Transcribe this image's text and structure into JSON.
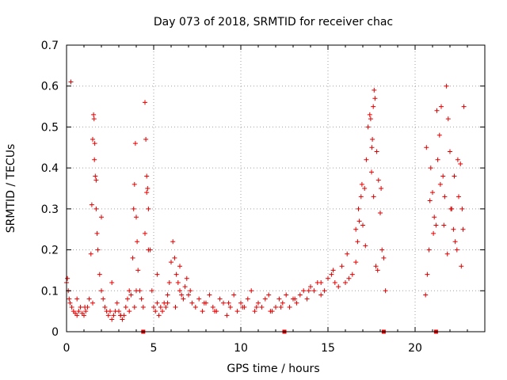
{
  "chart_data": {
    "type": "scatter",
    "title": "Day 073 of 2018, SRMTID for receiver chac",
    "xlabel": "GPS time / hours",
    "ylabel": "SRMTID / TECUs",
    "xlim": [
      0,
      24
    ],
    "ylim": [
      0,
      0.7
    ],
    "xticks": [
      "0",
      "5",
      "10",
      "15",
      "20"
    ],
    "xtick_values": [
      0,
      5,
      10,
      15,
      20
    ],
    "yticks": [
      "0",
      "0.1",
      "0.2",
      "0.3",
      "0.4",
      "0.5",
      "0.6",
      "0.7"
    ],
    "ytick_values": [
      0,
      0.1,
      0.2,
      0.3,
      0.4,
      0.5,
      0.6,
      0.7
    ],
    "grid": true,
    "marker": "+",
    "color": "#e00000",
    "gap_markers_x": [
      4.4,
      12.5,
      18.2,
      21.2
    ],
    "series": [
      {
        "name": "SRMTID",
        "x": [
          0.0,
          0.05,
          0.1,
          0.15,
          0.2,
          0.3,
          0.4,
          0.5,
          0.6,
          0.7,
          0.8,
          0.9,
          1.0,
          1.1,
          1.2,
          1.3,
          1.4,
          1.45,
          1.5,
          1.55,
          1.6,
          1.65,
          1.7,
          1.75,
          1.8,
          1.9,
          2.0,
          2.1,
          2.2,
          2.3,
          2.4,
          2.5,
          2.6,
          2.7,
          2.8,
          2.9,
          3.0,
          3.1,
          3.2,
          3.3,
          3.4,
          3.5,
          3.6,
          3.7,
          3.8,
          3.85,
          3.9,
          3.95,
          4.0,
          4.05,
          4.1,
          4.2,
          4.3,
          4.4,
          4.5,
          4.55,
          4.6,
          4.65,
          4.7,
          4.8,
          4.9,
          5.0,
          5.1,
          5.2,
          5.3,
          5.4,
          5.5,
          5.6,
          5.7,
          5.8,
          5.9,
          6.0,
          6.1,
          6.2,
          6.3,
          6.4,
          6.5,
          6.6,
          6.7,
          6.8,
          6.9,
          7.0,
          7.2,
          7.4,
          7.6,
          7.8,
          8.0,
          8.2,
          8.4,
          8.6,
          8.8,
          9.0,
          9.2,
          9.4,
          9.6,
          9.8,
          10.0,
          10.2,
          10.4,
          10.6,
          10.8,
          11.0,
          11.2,
          11.4,
          11.6,
          11.8,
          12.0,
          12.2,
          12.4,
          12.6,
          12.8,
          13.0,
          13.2,
          13.4,
          13.6,
          13.8,
          14.0,
          14.2,
          14.4,
          14.6,
          14.8,
          15.0,
          15.2,
          15.4,
          15.6,
          15.8,
          16.0,
          16.2,
          16.4,
          16.6,
          16.7,
          16.8,
          16.9,
          17.0,
          17.1,
          17.2,
          17.3,
          17.4,
          17.5,
          17.55,
          17.6,
          17.65,
          17.7,
          17.8,
          17.9,
          18.0,
          18.1,
          18.2,
          18.3,
          20.6,
          20.7,
          20.8,
          20.9,
          21.0,
          21.1,
          21.2,
          21.3,
          21.4,
          21.5,
          21.6,
          21.7,
          21.8,
          21.9,
          22.0,
          22.1,
          22.2,
          22.3,
          22.4,
          22.5,
          22.6,
          22.7,
          22.8,
          0.25,
          0.6,
          1.05,
          1.5,
          1.58,
          1.62,
          1.7,
          2.0,
          2.6,
          3.1,
          3.6,
          3.9,
          4.0,
          4.5,
          4.6,
          4.7,
          5.2,
          5.8,
          6.25,
          6.5,
          7.1,
          7.9,
          8.5,
          9.3,
          10.1,
          10.9,
          11.7,
          12.3,
          13.1,
          13.9,
          14.6,
          15.3,
          16.1,
          16.6,
          16.75,
          16.95,
          17.15,
          17.45,
          17.52,
          17.62,
          17.75,
          17.85,
          18.05,
          20.65,
          20.85,
          21.05,
          21.25,
          21.45,
          21.65,
          21.85,
          22.05,
          22.25,
          22.45,
          22.65,
          22.75
        ],
        "y": [
          0.12,
          0.13,
          0.1,
          0.08,
          0.07,
          0.06,
          0.05,
          0.045,
          0.04,
          0.05,
          0.06,
          0.045,
          0.04,
          0.05,
          0.06,
          0.08,
          0.19,
          0.31,
          0.47,
          0.53,
          0.42,
          0.38,
          0.3,
          0.24,
          0.2,
          0.14,
          0.1,
          0.08,
          0.06,
          0.05,
          0.04,
          0.05,
          0.03,
          0.04,
          0.05,
          0.07,
          0.05,
          0.04,
          0.03,
          0.04,
          0.06,
          0.08,
          0.1,
          0.09,
          0.18,
          0.3,
          0.36,
          0.46,
          0.28,
          0.22,
          0.15,
          0.1,
          0.08,
          0.06,
          0.56,
          0.47,
          0.38,
          0.35,
          0.3,
          0.2,
          0.1,
          0.06,
          0.05,
          0.07,
          0.04,
          0.06,
          0.05,
          0.07,
          0.06,
          0.09,
          0.12,
          0.17,
          0.22,
          0.18,
          0.14,
          0.12,
          0.1,
          0.09,
          0.08,
          0.11,
          0.13,
          0.09,
          0.07,
          0.06,
          0.08,
          0.05,
          0.07,
          0.09,
          0.06,
          0.05,
          0.08,
          0.07,
          0.04,
          0.06,
          0.09,
          0.05,
          0.07,
          0.06,
          0.08,
          0.1,
          0.05,
          0.07,
          0.06,
          0.08,
          0.09,
          0.05,
          0.06,
          0.08,
          0.07,
          0.09,
          0.06,
          0.08,
          0.07,
          0.09,
          0.1,
          0.08,
          0.11,
          0.1,
          0.12,
          0.09,
          0.1,
          0.13,
          0.14,
          0.12,
          0.11,
          0.16,
          0.12,
          0.13,
          0.14,
          0.17,
          0.22,
          0.27,
          0.33,
          0.26,
          0.35,
          0.42,
          0.5,
          0.53,
          0.39,
          0.47,
          0.55,
          0.59,
          0.57,
          0.44,
          0.37,
          0.29,
          0.2,
          0.18,
          0.1,
          0.09,
          0.14,
          0.2,
          0.4,
          0.34,
          0.28,
          0.26,
          0.42,
          0.48,
          0.55,
          0.38,
          0.33,
          0.6,
          0.52,
          0.44,
          0.3,
          0.25,
          0.22,
          0.2,
          0.33,
          0.41,
          0.3,
          0.55,
          0.61,
          0.08,
          0.06,
          0.07,
          0.52,
          0.46,
          0.37,
          0.28,
          0.12,
          0.04,
          0.05,
          0.06,
          0.1,
          0.24,
          0.34,
          0.2,
          0.14,
          0.07,
          0.06,
          0.16,
          0.1,
          0.07,
          0.05,
          0.07,
          0.06,
          0.06,
          0.05,
          0.06,
          0.08,
          0.1,
          0.12,
          0.15,
          0.19,
          0.25,
          0.3,
          0.36,
          0.21,
          0.52,
          0.45,
          0.33,
          0.16,
          0.15,
          0.35,
          0.45,
          0.32,
          0.24,
          0.54,
          0.36,
          0.26,
          0.19,
          0.3,
          0.38,
          0.42,
          0.16,
          0.25
        ]
      }
    ]
  }
}
